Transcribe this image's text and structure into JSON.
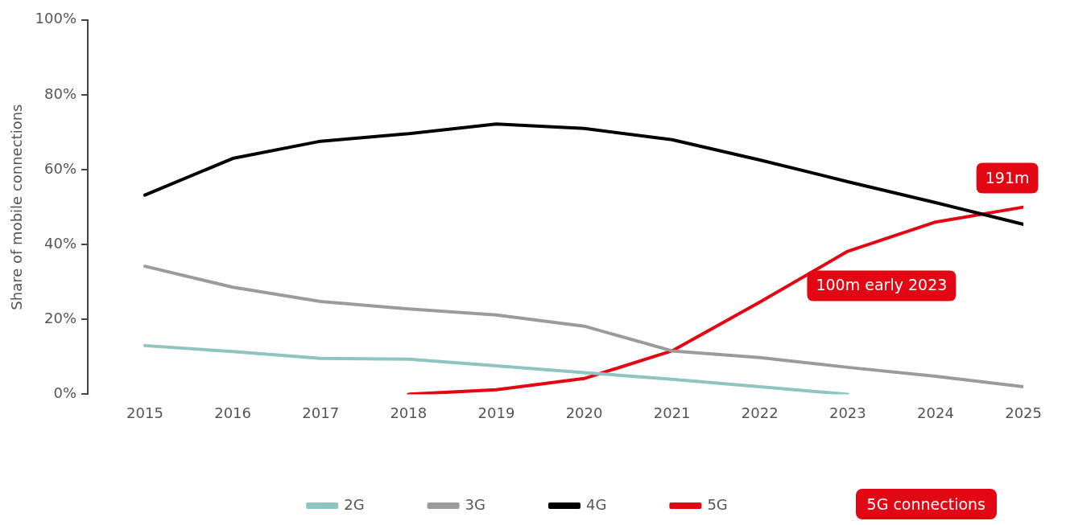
{
  "chart_data": {
    "type": "line",
    "ylabel": "Share of mobile connections",
    "x": [
      2015,
      2016,
      2017,
      2018,
      2019,
      2020,
      2021,
      2022,
      2023,
      2024,
      2025
    ],
    "xlim": [
      2014.35,
      2025
    ],
    "xticks": [
      2015,
      2016,
      2017,
      2018,
      2019,
      2020,
      2021,
      2022,
      2023,
      2024,
      2025
    ],
    "ylim": [
      0,
      100
    ],
    "yticks": [
      {
        "value": 0,
        "label": "0%"
      },
      {
        "value": 20,
        "label": "20%"
      },
      {
        "value": 40,
        "label": "40%"
      },
      {
        "value": 60,
        "label": "60%"
      },
      {
        "value": 80,
        "label": "80%"
      },
      {
        "value": 100,
        "label": "100%"
      }
    ],
    "series": [
      {
        "name": "2G",
        "color": "#8ec5c0",
        "values": [
          13,
          11.4,
          9.6,
          9.4,
          7.6,
          5.8,
          4,
          2,
          0,
          null,
          null
        ]
      },
      {
        "name": "3G",
        "color": "#9b9b9b",
        "values": [
          34.2,
          28.6,
          24.8,
          22.8,
          21.2,
          18.2,
          11.6,
          9.8,
          7.2,
          4.8,
          2
        ]
      },
      {
        "name": "4G",
        "color": "#000000",
        "values": [
          53.2,
          63,
          67.6,
          69.6,
          72.2,
          71,
          68,
          62.6,
          56.8,
          51.2,
          45.4
        ]
      },
      {
        "name": "5G",
        "color": "#e30613",
        "values": [
          null,
          null,
          null,
          0,
          1.2,
          4.2,
          11.6,
          24.6,
          38.2,
          46,
          50
        ]
      }
    ],
    "annotations": [
      {
        "text": "191m",
        "x": 2025,
        "y": 50
      },
      {
        "text": "100m early 2023",
        "x": 2023,
        "y": 38.2
      },
      "5G connections"
    ],
    "grid": false,
    "legend": "bottom",
    "marker": "none",
    "line_style": "solid"
  }
}
